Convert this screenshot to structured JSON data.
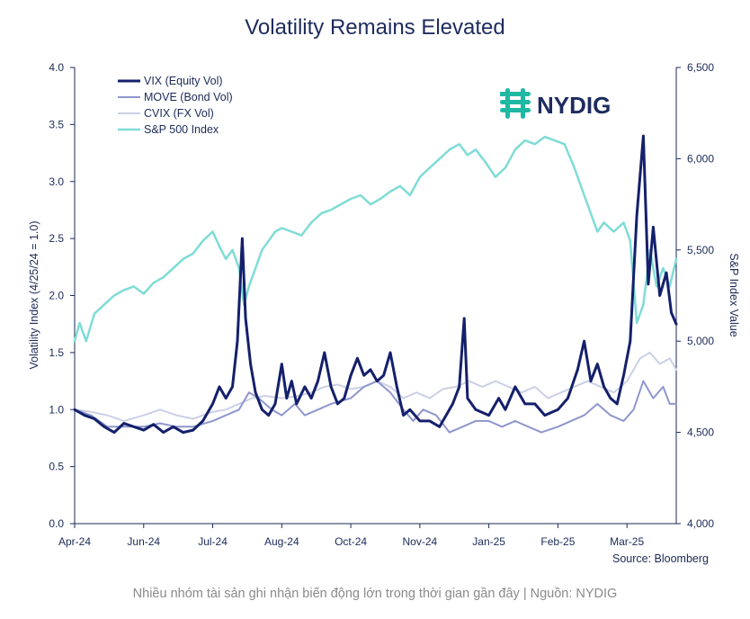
{
  "chart_data": {
    "type": "line",
    "title": "Volatility Remains Elevated",
    "ylabel_left": "Volatility Index (4/25/24 = 1.0)",
    "ylabel_right": "S&P Index Value",
    "ylim_left": [
      0,
      4.0
    ],
    "ylim_right": [
      4000,
      6500
    ],
    "yticks_left": [
      "0.0",
      "0.5",
      "1.0",
      "1.5",
      "2.0",
      "2.5",
      "3.0",
      "3.5",
      "4.0"
    ],
    "yticks_right": [
      "4,000",
      "4,500",
      "5,000",
      "5,500",
      "6,000",
      "6,500"
    ],
    "x_tick_labels": [
      "Apr-24",
      "Jun-24",
      "Jul-24",
      "Aug-24",
      "Oct-24",
      "Nov-24",
      "Jan-25",
      "Feb-25",
      "Mar-25"
    ],
    "x_tick_positions": [
      0,
      2.1,
      4.2,
      6.3,
      8.4,
      10.5,
      12.6,
      14.7,
      16.8
    ],
    "x_max": 18.3,
    "legend_position": "top-left",
    "grid": false,
    "series": [
      {
        "name": "VIX (Equity Vol)",
        "axis": "left",
        "color": "#14206b",
        "width": 3,
        "points": [
          [
            0,
            1.0
          ],
          [
            0.3,
            0.95
          ],
          [
            0.6,
            0.92
          ],
          [
            0.9,
            0.85
          ],
          [
            1.2,
            0.8
          ],
          [
            1.5,
            0.88
          ],
          [
            1.8,
            0.85
          ],
          [
            2.1,
            0.82
          ],
          [
            2.4,
            0.87
          ],
          [
            2.7,
            0.8
          ],
          [
            3.0,
            0.85
          ],
          [
            3.3,
            0.8
          ],
          [
            3.6,
            0.82
          ],
          [
            3.9,
            0.9
          ],
          [
            4.2,
            1.05
          ],
          [
            4.4,
            1.2
          ],
          [
            4.6,
            1.1
          ],
          [
            4.8,
            1.2
          ],
          [
            4.95,
            1.6
          ],
          [
            5.1,
            2.5
          ],
          [
            5.2,
            1.8
          ],
          [
            5.35,
            1.4
          ],
          [
            5.5,
            1.15
          ],
          [
            5.7,
            1.0
          ],
          [
            5.9,
            0.95
          ],
          [
            6.1,
            1.05
          ],
          [
            6.3,
            1.4
          ],
          [
            6.45,
            1.1
          ],
          [
            6.6,
            1.25
          ],
          [
            6.75,
            1.05
          ],
          [
            7.0,
            1.2
          ],
          [
            7.2,
            1.1
          ],
          [
            7.4,
            1.25
          ],
          [
            7.6,
            1.5
          ],
          [
            7.8,
            1.2
          ],
          [
            8.0,
            1.05
          ],
          [
            8.2,
            1.1
          ],
          [
            8.4,
            1.3
          ],
          [
            8.6,
            1.45
          ],
          [
            8.8,
            1.3
          ],
          [
            9.0,
            1.35
          ],
          [
            9.2,
            1.25
          ],
          [
            9.4,
            1.3
          ],
          [
            9.6,
            1.5
          ],
          [
            9.8,
            1.2
          ],
          [
            10.0,
            0.95
          ],
          [
            10.2,
            1.0
          ],
          [
            10.5,
            0.9
          ],
          [
            10.8,
            0.9
          ],
          [
            11.1,
            0.85
          ],
          [
            11.3,
            0.95
          ],
          [
            11.5,
            1.05
          ],
          [
            11.7,
            1.2
          ],
          [
            11.85,
            1.8
          ],
          [
            11.95,
            1.1
          ],
          [
            12.2,
            1.0
          ],
          [
            12.6,
            0.95
          ],
          [
            12.9,
            1.1
          ],
          [
            13.1,
            1.0
          ],
          [
            13.4,
            1.2
          ],
          [
            13.7,
            1.05
          ],
          [
            14.0,
            1.05
          ],
          [
            14.3,
            0.95
          ],
          [
            14.7,
            1.0
          ],
          [
            15.0,
            1.1
          ],
          [
            15.3,
            1.35
          ],
          [
            15.5,
            1.6
          ],
          [
            15.7,
            1.25
          ],
          [
            15.9,
            1.4
          ],
          [
            16.1,
            1.2
          ],
          [
            16.3,
            1.1
          ],
          [
            16.5,
            1.05
          ],
          [
            16.7,
            1.3
          ],
          [
            16.9,
            1.6
          ],
          [
            17.1,
            2.7
          ],
          [
            17.3,
            3.4
          ],
          [
            17.45,
            2.1
          ],
          [
            17.6,
            2.6
          ],
          [
            17.8,
            2.0
          ],
          [
            18.0,
            2.2
          ],
          [
            18.15,
            1.85
          ],
          [
            18.3,
            1.75
          ]
        ]
      },
      {
        "name": "MOVE (Bond Vol)",
        "axis": "left",
        "color": "#8f96cf",
        "width": 2,
        "points": [
          [
            0,
            1.0
          ],
          [
            0.5,
            0.95
          ],
          [
            1.0,
            0.85
          ],
          [
            1.5,
            0.85
          ],
          [
            2.1,
            0.85
          ],
          [
            2.6,
            0.88
          ],
          [
            3.1,
            0.85
          ],
          [
            3.6,
            0.85
          ],
          [
            4.2,
            0.9
          ],
          [
            4.6,
            0.95
          ],
          [
            5.0,
            1.0
          ],
          [
            5.3,
            1.15
          ],
          [
            5.6,
            1.1
          ],
          [
            6.0,
            1.0
          ],
          [
            6.3,
            0.95
          ],
          [
            6.7,
            1.05
          ],
          [
            7.0,
            0.95
          ],
          [
            7.4,
            1.0
          ],
          [
            7.8,
            1.05
          ],
          [
            8.4,
            1.1
          ],
          [
            8.8,
            1.2
          ],
          [
            9.2,
            1.25
          ],
          [
            9.6,
            1.15
          ],
          [
            10.0,
            1.0
          ],
          [
            10.3,
            0.9
          ],
          [
            10.6,
            1.0
          ],
          [
            11.0,
            0.95
          ],
          [
            11.4,
            0.8
          ],
          [
            11.8,
            0.85
          ],
          [
            12.2,
            0.9
          ],
          [
            12.6,
            0.9
          ],
          [
            13.0,
            0.85
          ],
          [
            13.4,
            0.9
          ],
          [
            13.8,
            0.85
          ],
          [
            14.2,
            0.8
          ],
          [
            14.7,
            0.85
          ],
          [
            15.1,
            0.9
          ],
          [
            15.5,
            0.95
          ],
          [
            15.9,
            1.05
          ],
          [
            16.3,
            0.95
          ],
          [
            16.7,
            0.9
          ],
          [
            17.0,
            1.0
          ],
          [
            17.3,
            1.25
          ],
          [
            17.6,
            1.1
          ],
          [
            17.9,
            1.2
          ],
          [
            18.1,
            1.05
          ],
          [
            18.3,
            1.05
          ]
        ]
      },
      {
        "name": "CVIX (FX Vol)",
        "axis": "left",
        "color": "#ccd0e6",
        "width": 2,
        "points": [
          [
            0,
            1.0
          ],
          [
            0.5,
            0.98
          ],
          [
            1.0,
            0.95
          ],
          [
            1.5,
            0.9
          ],
          [
            2.1,
            0.95
          ],
          [
            2.6,
            1.0
          ],
          [
            3.1,
            0.95
          ],
          [
            3.6,
            0.92
          ],
          [
            4.2,
            0.98
          ],
          [
            4.6,
            1.0
          ],
          [
            5.0,
            1.05
          ],
          [
            5.4,
            1.1
          ],
          [
            5.8,
            1.12
          ],
          [
            6.3,
            1.1
          ],
          [
            6.8,
            1.12
          ],
          [
            7.2,
            1.15
          ],
          [
            7.6,
            1.2
          ],
          [
            8.0,
            1.22
          ],
          [
            8.4,
            1.18
          ],
          [
            8.8,
            1.2
          ],
          [
            9.2,
            1.25
          ],
          [
            9.6,
            1.2
          ],
          [
            10.0,
            1.1
          ],
          [
            10.4,
            1.15
          ],
          [
            10.8,
            1.1
          ],
          [
            11.2,
            1.18
          ],
          [
            11.6,
            1.2
          ],
          [
            12.0,
            1.25
          ],
          [
            12.4,
            1.2
          ],
          [
            12.8,
            1.25
          ],
          [
            13.2,
            1.2
          ],
          [
            13.6,
            1.15
          ],
          [
            14.0,
            1.2
          ],
          [
            14.4,
            1.1
          ],
          [
            14.8,
            1.15
          ],
          [
            15.2,
            1.2
          ],
          [
            15.6,
            1.25
          ],
          [
            16.0,
            1.2
          ],
          [
            16.4,
            1.15
          ],
          [
            16.8,
            1.25
          ],
          [
            17.2,
            1.45
          ],
          [
            17.5,
            1.5
          ],
          [
            17.8,
            1.4
          ],
          [
            18.1,
            1.45
          ],
          [
            18.3,
            1.35
          ]
        ]
      },
      {
        "name": "S&P 500 Index",
        "axis": "right",
        "color": "#7fdcd6",
        "width": 2.5,
        "points": [
          [
            0,
            5000
          ],
          [
            0.15,
            5100
          ],
          [
            0.35,
            5000
          ],
          [
            0.6,
            5150
          ],
          [
            0.9,
            5200
          ],
          [
            1.2,
            5250
          ],
          [
            1.5,
            5280
          ],
          [
            1.8,
            5300
          ],
          [
            2.1,
            5260
          ],
          [
            2.4,
            5320
          ],
          [
            2.7,
            5350
          ],
          [
            3.0,
            5400
          ],
          [
            3.3,
            5450
          ],
          [
            3.6,
            5480
          ],
          [
            3.9,
            5550
          ],
          [
            4.2,
            5600
          ],
          [
            4.4,
            5520
          ],
          [
            4.6,
            5450
          ],
          [
            4.8,
            5500
          ],
          [
            5.0,
            5400
          ],
          [
            5.15,
            5200
          ],
          [
            5.3,
            5300
          ],
          [
            5.5,
            5400
          ],
          [
            5.7,
            5500
          ],
          [
            5.9,
            5550
          ],
          [
            6.1,
            5600
          ],
          [
            6.3,
            5620
          ],
          [
            6.6,
            5600
          ],
          [
            6.9,
            5580
          ],
          [
            7.2,
            5650
          ],
          [
            7.5,
            5700
          ],
          [
            7.8,
            5720
          ],
          [
            8.1,
            5750
          ],
          [
            8.4,
            5780
          ],
          [
            8.7,
            5800
          ],
          [
            9.0,
            5750
          ],
          [
            9.3,
            5780
          ],
          [
            9.6,
            5820
          ],
          [
            9.9,
            5850
          ],
          [
            10.2,
            5800
          ],
          [
            10.5,
            5900
          ],
          [
            10.8,
            5950
          ],
          [
            11.1,
            6000
          ],
          [
            11.4,
            6050
          ],
          [
            11.7,
            6080
          ],
          [
            11.95,
            6020
          ],
          [
            12.2,
            6050
          ],
          [
            12.5,
            5980
          ],
          [
            12.8,
            5900
          ],
          [
            13.1,
            5950
          ],
          [
            13.4,
            6050
          ],
          [
            13.7,
            6100
          ],
          [
            14.0,
            6080
          ],
          [
            14.3,
            6120
          ],
          [
            14.6,
            6100
          ],
          [
            14.9,
            6080
          ],
          [
            15.2,
            5950
          ],
          [
            15.5,
            5800
          ],
          [
            15.7,
            5700
          ],
          [
            15.9,
            5600
          ],
          [
            16.1,
            5650
          ],
          [
            16.4,
            5600
          ],
          [
            16.7,
            5650
          ],
          [
            16.9,
            5550
          ],
          [
            17.1,
            5100
          ],
          [
            17.3,
            5200
          ],
          [
            17.5,
            5500
          ],
          [
            17.7,
            5300
          ],
          [
            17.9,
            5400
          ],
          [
            18.1,
            5300
          ],
          [
            18.3,
            5450
          ]
        ]
      }
    ]
  },
  "logo": {
    "text": "NYDIG",
    "icon": "nydig-logo-icon",
    "icon_color": "#1fb8a3"
  },
  "source_note": "Source: Bloomberg",
  "caption": "Nhiều nhóm tài sản ghi nhận biến động lớn trong thời gian gần đây | Nguồn: NYDIG"
}
